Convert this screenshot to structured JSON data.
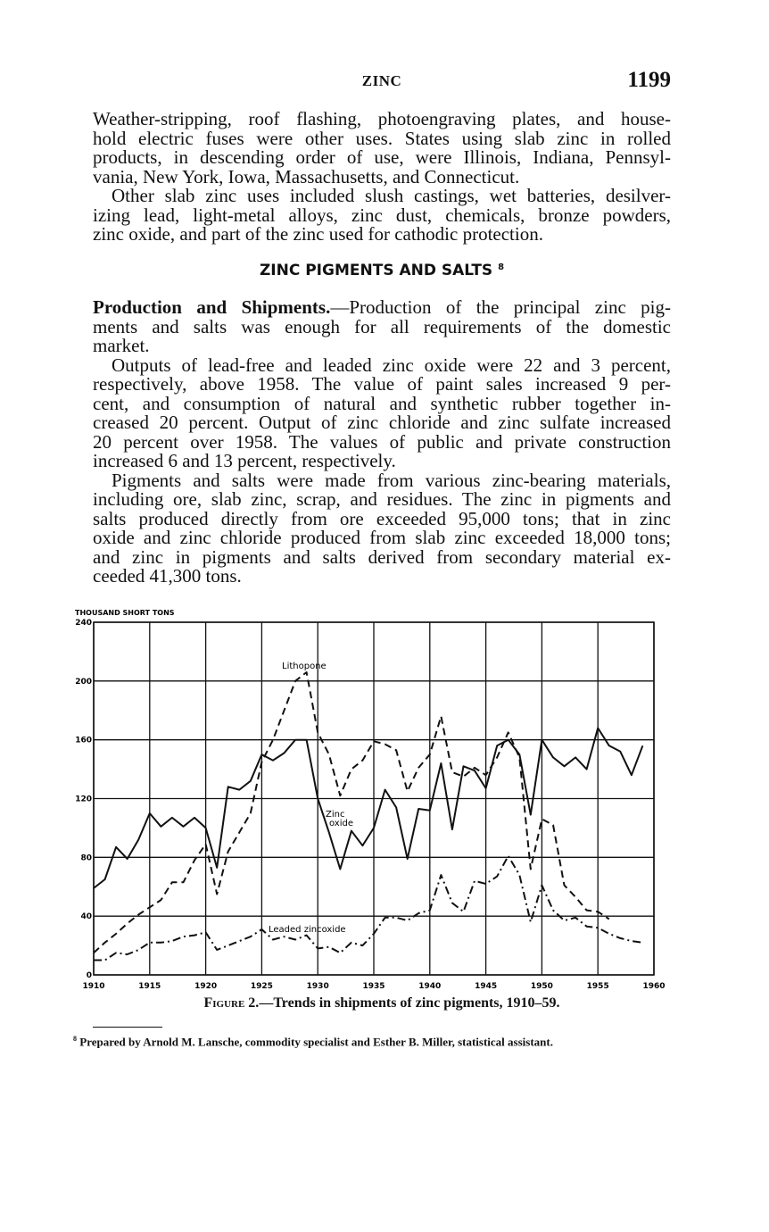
{
  "header": {
    "running_title": "ZINC",
    "page_number": "1199"
  },
  "block1": {
    "para1": [
      "Weather-stripping, roof flashing, photoengraving plates, and house-",
      "hold electric fuses were other uses. States using slab zinc in rolled",
      "products, in descending order of use, were Illinois, Indiana, Pennsyl-",
      "vania, New York, Iowa, Massachusetts, and Connecticut."
    ],
    "para2": [
      " Other slab zinc uses included slush castings, wet batteries, desilver-",
      "izing lead, light-metal alloys, zinc dust, chemicals, bronze powders,",
      "zinc oxide, and part of the zinc used for cathodic protection."
    ]
  },
  "section_heading": {
    "text": "ZINC PIGMENTS AND SALTS",
    "footnote_ref": "8"
  },
  "block2": {
    "para3_runin": "Production and Shipments.",
    "para3": [
      "—Production of the principal zinc pig-",
      "ments and salts was enough for all requirements of the domestic",
      "market."
    ],
    "para4": [
      " Outputs of lead-free and leaded zinc oxide were 22 and 3 percent,",
      "respectively, above 1958. The value of paint sales increased 9 per-",
      "cent, and consumption of natural and synthetic rubber together in-",
      "creased 20 percent. Output of zinc chloride and zinc sulfate increased",
      "20 percent over 1958. The values of public and private construction",
      "increased 6 and 13 percent, respectively."
    ],
    "para5": [
      " Pigments and salts were made from various zinc-bearing materials,",
      "including ore, slab zinc, scrap, and residues. The zinc in pigments and",
      "salts produced directly from ore exceeded 95,000 tons; that in zinc",
      "oxide and zinc chloride produced from slab zinc exceeded 18,000 tons;",
      "and zinc in pigments and salts derived from secondary material ex-",
      "ceeded 41,300 tons."
    ]
  },
  "chart_data": {
    "type": "line",
    "title": "",
    "ylabel": "THOUSAND SHORT TONS",
    "xlabel": "",
    "xlim": [
      1910,
      1960
    ],
    "ylim": [
      0,
      240
    ],
    "x_ticks": [
      "1910",
      "1915",
      "1920",
      "1925",
      "1930",
      "1935",
      "1940",
      "1945",
      "1950",
      "1955",
      "1960"
    ],
    "y_ticks": [
      "0",
      "40",
      "80",
      "120",
      "160",
      "200",
      "240"
    ],
    "grid": true,
    "series": [
      {
        "name": "Zinc oxide",
        "style": "solid",
        "start_year": 1910,
        "values": [
          59,
          65,
          87,
          79,
          92,
          110,
          101,
          107,
          101,
          107,
          100,
          73,
          128,
          126,
          132,
          150,
          146,
          151,
          160,
          160,
          120,
          97,
          72,
          98,
          88,
          100,
          126,
          114,
          79,
          113,
          112,
          144,
          99,
          142,
          139,
          127,
          156,
          160,
          150,
          109,
          160,
          148,
          142,
          148,
          140,
          168,
          156,
          152,
          136,
          156
        ]
      },
      {
        "name": "Lithopone",
        "style": "dashed",
        "start_year": 1910,
        "values": [
          15,
          22,
          28,
          35,
          41,
          46,
          51,
          63,
          63,
          78,
          89,
          55,
          84,
          97,
          110,
          145,
          160,
          180,
          200,
          206,
          165,
          150,
          122,
          140,
          146,
          159,
          157,
          153,
          125,
          141,
          150,
          176,
          138,
          135,
          141,
          136,
          148,
          165,
          148,
          72,
          106,
          102,
          61,
          53,
          44,
          43,
          38
        ]
      },
      {
        "name": "Leaded zincoxide",
        "style": "dash-dot",
        "start_year": 1910,
        "values": [
          10,
          10,
          15,
          14,
          17,
          22,
          22,
          23,
          26,
          27,
          29,
          17,
          20,
          23,
          26,
          31,
          24,
          26,
          24,
          27,
          18,
          19,
          15,
          22,
          20,
          28,
          39,
          39,
          37,
          42,
          44,
          68,
          49,
          43,
          64,
          62,
          67,
          81,
          68,
          36,
          61,
          44,
          37,
          39,
          33,
          32,
          28,
          25,
          23,
          22
        ]
      }
    ],
    "annotations": {
      "lithopone": "Lithopone",
      "zinc_oxide_1": "Zinc",
      "zinc_oxide_2": "oxide",
      "leaded": "Leaded zincoxide"
    }
  },
  "caption": {
    "label": "Figure 2.",
    "text": "—Trends in shipments of zinc pigments, 1910–59."
  },
  "footnote": {
    "marker": "8",
    "text": " Prepared by Arnold M. Lansche, commodity specialist and Esther B. Miller, statistical assistant."
  }
}
